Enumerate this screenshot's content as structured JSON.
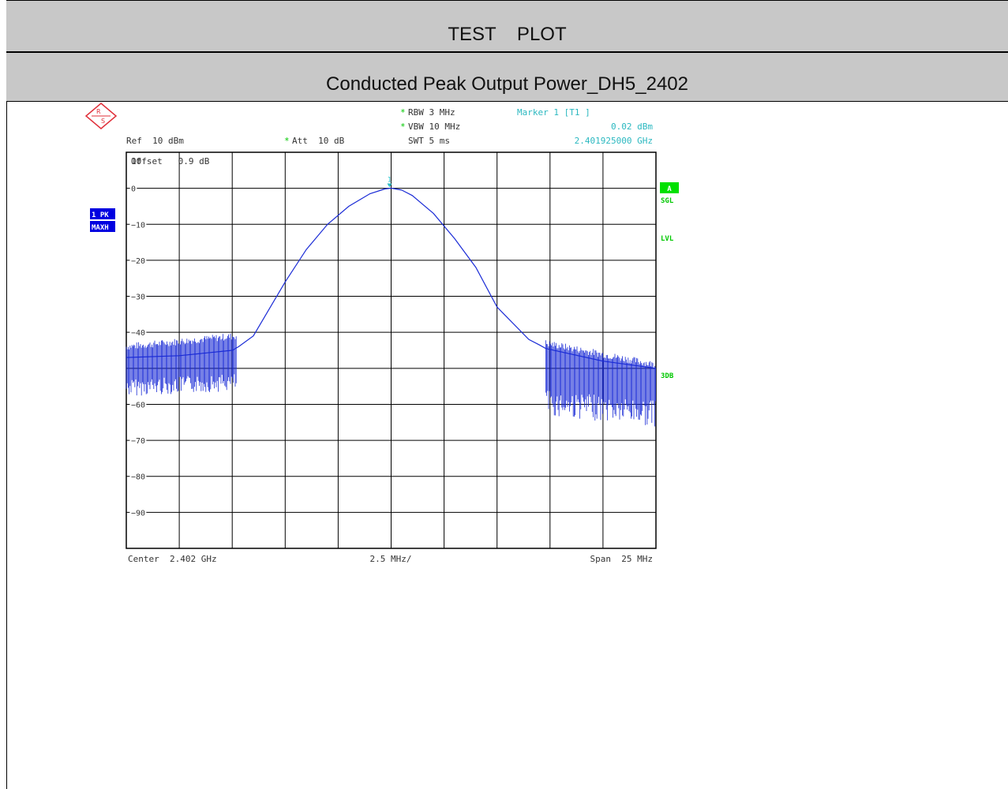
{
  "header": {
    "title": "TEST    PLOT",
    "subtitle": "Conducted Peak Output Power_DH5_2402"
  },
  "instrument": {
    "rbw": "RBW  3 MHz",
    "vbw": "VBW  10 MHz",
    "swt": "SWT  5 ms",
    "ref": "Ref  10 dBm",
    "att": "Att  10 dB",
    "marker_label": "Marker 1 [T1 ]",
    "marker_level": "0.02 dBm",
    "marker_freq": "2.401925000 GHz",
    "offset": "Offset   0.9 dB",
    "trace_label": "1 PK",
    "trace_mode": "MAXH",
    "side_a": "A",
    "side_sgl": "SGL",
    "side_lvl": "LVL",
    "side_3db": "3DB",
    "marker_num": "1",
    "center": "Center  2.402 GHz",
    "per_div": "2.5 MHz/",
    "span": "Span  25 MHz",
    "star": "*"
  },
  "colors": {
    "trace": "#1a2bd6",
    "accent": "#2bb8c0",
    "green": "#00c800",
    "blue_label": "#0000e0"
  },
  "chart_data": {
    "type": "line",
    "title": "Conducted Peak Output Power_DH5_2402",
    "xlabel": "",
    "ylabel": "",
    "x_range_mhz": [
      -12.5,
      12.5
    ],
    "ylim": [
      -100,
      10
    ],
    "y_ticks": [
      10,
      0,
      -10,
      -20,
      -30,
      -40,
      -50,
      -60,
      -70,
      -80,
      -90
    ],
    "y_tick_labels": [
      "10",
      "0",
      "-10",
      "-20",
      "-30",
      "-40",
      "",
      "-60",
      "-70",
      "-80",
      "-90"
    ],
    "grid": true,
    "series": [
      {
        "x": [
          -12.5,
          -10,
          -7.5,
          -7.2,
          -6.5,
          -5,
          -4,
          -3,
          -2,
          -1,
          -0.3,
          0,
          0.5,
          1,
          2,
          3,
          4,
          5,
          6.5,
          7,
          7.3,
          10,
          12.5
        ],
        "values": [
          -47,
          -46.5,
          -45,
          -44,
          -41,
          -26,
          -17,
          -10,
          -5,
          -1.5,
          -0.2,
          0.02,
          -0.5,
          -2,
          -7,
          -14,
          -22,
          -33,
          -42,
          -43.5,
          -44.5,
          -48,
          -50
        ]
      }
    ],
    "noise_floor": {
      "left": {
        "x": [
          -12.5,
          -7.3
        ],
        "top": -45,
        "bottom": -53
      },
      "right": {
        "x": [
          7.3,
          12.5
        ],
        "top": -44,
        "bottom": -56
      }
    },
    "marker": {
      "x": -0.075,
      "y": 0.02
    }
  }
}
